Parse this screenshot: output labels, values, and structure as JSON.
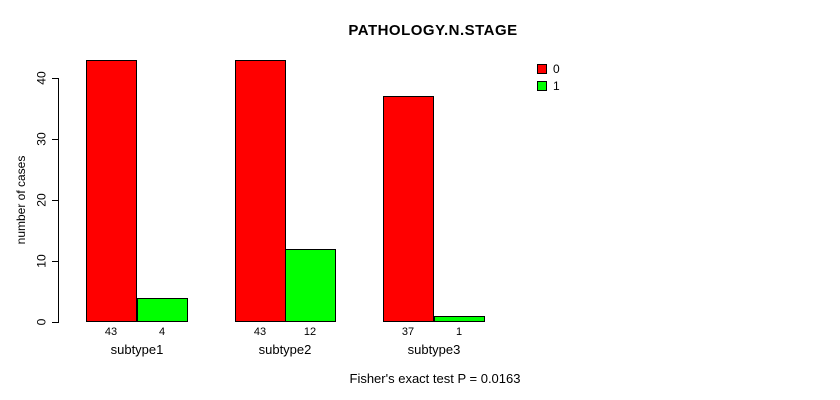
{
  "chart_data": {
    "type": "bar",
    "title": "PATHOLOGY.N.STAGE",
    "ylabel": "number of cases",
    "xlabel": "",
    "categories": [
      "subtype1",
      "subtype2",
      "subtype3"
    ],
    "series": [
      {
        "name": "0",
        "color": "#ff0000",
        "values": [
          43,
          43,
          37
        ]
      },
      {
        "name": "1",
        "color": "#00ff00",
        "values": [
          4,
          12,
          1
        ]
      }
    ],
    "bar_value_labels": [
      [
        "43",
        "4"
      ],
      [
        "43",
        "12"
      ],
      [
        "37",
        "1"
      ]
    ],
    "yticks": [
      0,
      10,
      20,
      30,
      40
    ],
    "ylim": [
      0,
      40
    ],
    "grid": false,
    "legend_position": "top-right",
    "footnote": "Fisher's exact test P = 0.0163",
    "colors": {
      "foreground": "#000000",
      "background": "#ffffff"
    }
  }
}
